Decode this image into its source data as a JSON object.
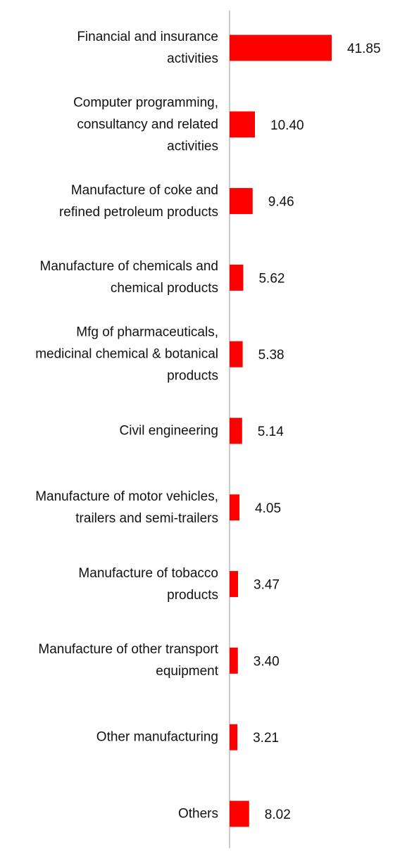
{
  "chart_data": {
    "type": "bar",
    "orientation": "horizontal",
    "color": "#ff0000",
    "categories": [
      "Financial and insurance activities",
      "Computer programming, consultancy and related activities",
      "Manufacture of coke and refined petroleum products",
      "Manufacture of chemicals and chemical products",
      "Mfg of pharmaceuticals, medicinal chemical & botanical products",
      "Civil engineering",
      "Manufacture of motor vehicles, trailers and semi-trailers",
      "Manufacture of tobacco products",
      "Manufacture of other transport equipment",
      "Other manufacturing",
      "Others"
    ],
    "values": [
      41.85,
      10.4,
      9.46,
      5.62,
      5.38,
      5.14,
      4.05,
      3.47,
      3.4,
      3.21,
      8.02
    ],
    "value_labels": [
      "41.85",
      "10.40",
      "9.46",
      "5.62",
      "5.38",
      "5.14",
      "4.05",
      "3.47",
      "3.40",
      "3.21",
      "8.02"
    ]
  }
}
